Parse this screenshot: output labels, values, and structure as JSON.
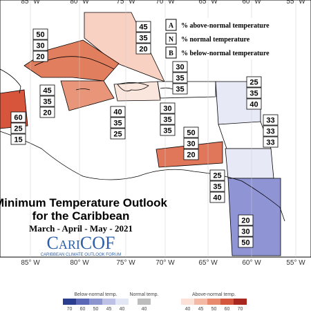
{
  "longitudes": [
    "85° W",
    "80° W",
    "75° W",
    "70° W",
    "65° W",
    "60° W",
    "55° W"
  ],
  "legend": {
    "items": [
      {
        "key": "A",
        "text": "% above-normal temperature"
      },
      {
        "key": "N",
        "text": "% normal temperature"
      },
      {
        "key": "B",
        "text": "% below-normal temperature"
      }
    ]
  },
  "title": {
    "line1": "Minimum Temperature Outlook",
    "line2": "for the Caribbean",
    "season": "March - April - May - 2021"
  },
  "logo": {
    "name": "CariCOF",
    "tagline": "CARIBBEAN CLIMATE OUTLOOK FORUM"
  },
  "regions": [
    [
      45,
      35,
      20
    ],
    [
      50,
      30,
      20
    ],
    [
      45,
      35,
      20
    ],
    [
      40,
      35,
      25
    ],
    [
      60,
      25,
      15
    ],
    [
      30,
      35,
      35
    ],
    [
      30,
      35,
      35
    ],
    [
      25,
      35,
      40
    ],
    [
      33,
      33,
      33
    ],
    [
      50,
      30,
      20
    ],
    [
      25,
      35,
      40
    ],
    [
      20,
      30,
      50
    ]
  ],
  "colorbar": {
    "below_title": "Below-normal temp.",
    "normal_title": "Normal temp.",
    "above_title": "Above-normal temp.",
    "below_ticks": [
      "70",
      "60",
      "50",
      "45",
      "40"
    ],
    "normal_ticks": [
      "40"
    ],
    "above_ticks": [
      "40",
      "45",
      "50",
      "60",
      "70"
    ]
  }
}
